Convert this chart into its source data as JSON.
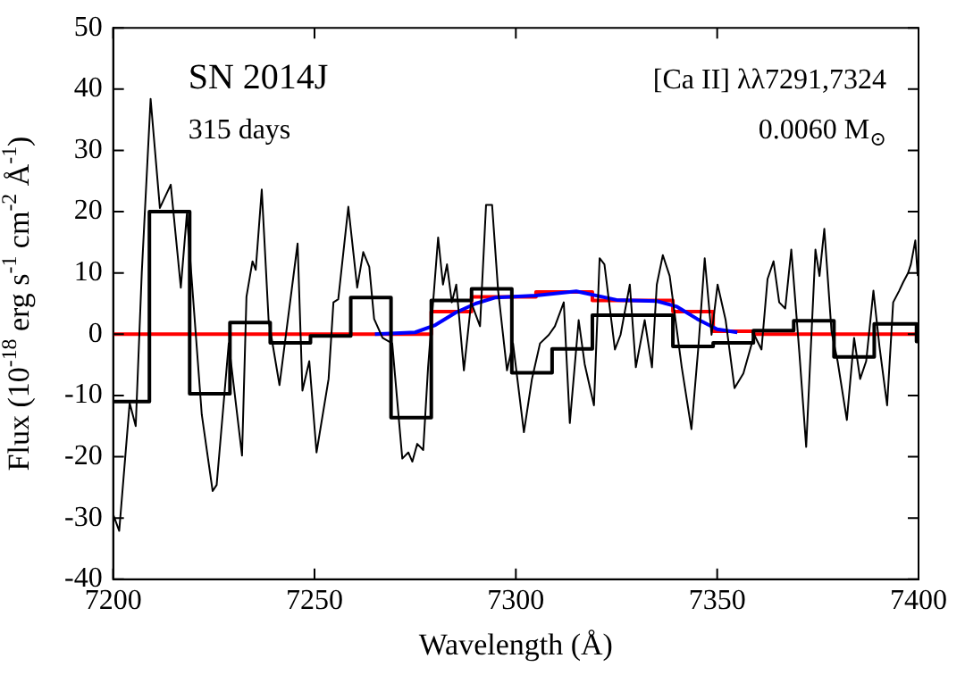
{
  "chart_data": {
    "type": "line",
    "xlabel": "Wavelength (Å)",
    "ylabel": "Flux (10$^{-18}$ erg s$^{-1}$ cm$^{-2}$ Å$^{-1}$)",
    "annotations": [
      "SN 2014J",
      "315 days",
      "[Ca II] λλ7291,7324",
      "0.0060 M$_{⊙}$"
    ],
    "xlim": [
      7200,
      7400
    ],
    "xticks": [
      7200,
      7250,
      7300,
      7350,
      7400
    ],
    "ylim": [
      -40,
      50
    ],
    "yticks": [
      -40,
      -30,
      -20,
      -10,
      0,
      10,
      20,
      30,
      40,
      50
    ],
    "grid": false,
    "legend": false,
    "marker": "none",
    "series": [
      {
        "type": "line",
        "color": "#000000",
        "x": [
          7200,
          7201.5,
          7204.1,
          7205.6,
          7207.1,
          7209.3,
          7211.6,
          7214.3,
          7216.8,
          7218.3,
          7222,
          7224.7,
          7225.7,
          7228.7,
          7232,
          7233.1,
          7234.6,
          7235.4,
          7236.9,
          7238.6,
          7241.3,
          7245.8,
          7247,
          7248.7,
          7250.5,
          7253.5,
          7254.7,
          7255.9,
          7258.4,
          7260.6,
          7262.1,
          7263.6,
          7264.8,
          7266.9,
          7269.3,
          7271.8,
          7273.3,
          7274.3,
          7275.5,
          7277,
          7278.2,
          7280.7,
          7281.9,
          7282.9,
          7284.1,
          7285.2,
          7287.1,
          7288.9,
          7291.1,
          7292.6,
          7294.1,
          7295.6,
          7297.8,
          7299.3,
          7302,
          7304,
          7306,
          7308.2,
          7309.7,
          7311.9,
          7313.4,
          7315.6,
          7317.1,
          7319.4,
          7320.8,
          7322,
          7324.6,
          7326,
          7328.3,
          7329.8,
          7332,
          7333.8,
          7335,
          7336.5,
          7338.2,
          7341.2,
          7343.6,
          7345.4,
          7346.9,
          7348.6,
          7350.1,
          7352.1,
          7354.3,
          7356.5,
          7359.2,
          7361,
          7362.5,
          7364,
          7365.4,
          7366.9,
          7368.4,
          7370.4,
          7372.1,
          7374.4,
          7375.4,
          7376.6,
          7378.4,
          7379.9,
          7382.2,
          7384,
          7385.5,
          7387,
          7388.8,
          7390.3,
          7392.2,
          7393.7,
          7395.2,
          7396.2,
          7397.4,
          7398.1,
          7399.2,
          7399.8
        ],
        "values": [
          -29.4,
          -32.1,
          -11.2,
          -15,
          10,
          38.4,
          20.6,
          24.4,
          7.6,
          19.6,
          -13.1,
          -25.6,
          -24.6,
          -1.5,
          -19.8,
          6.1,
          11.9,
          10.5,
          23.6,
          2.3,
          -8.3,
          14.8,
          -9.2,
          -4.4,
          -19.3,
          -7.3,
          5.2,
          5.7,
          20.8,
          7.6,
          13.4,
          11,
          2.5,
          -0.6,
          -1.5,
          -20.3,
          -19.3,
          -20.8,
          -17.9,
          -18.9,
          -5.4,
          15.8,
          8.1,
          11.4,
          5.2,
          8.1,
          -5.9,
          5.2,
          1.3,
          21.1,
          21.1,
          7.1,
          -5.9,
          -1.5,
          -16,
          -7.3,
          -1.5,
          -0.1,
          1.3,
          5.2,
          -14.5,
          2.3,
          -4.9,
          -11.6,
          12.4,
          11.4,
          -2.5,
          -0.1,
          8.1,
          -5.4,
          2.3,
          -5.4,
          8.1,
          12.9,
          9.5,
          -5.4,
          -15.5,
          -1.5,
          12.4,
          -0.1,
          8.1,
          2.3,
          -8.8,
          -6.4,
          -0.1,
          -2.5,
          9,
          11.9,
          5.2,
          4.2,
          13.8,
          -3,
          -18.4,
          13.8,
          9.5,
          17.2,
          0.4,
          -4.4,
          -14,
          -0.6,
          -7.3,
          -4.4,
          7.1,
          -2,
          -11.6,
          5.2,
          7.1,
          8.5,
          10,
          11.4,
          15.3,
          9.5
        ]
      },
      {
        "type": "step",
        "color": "#000000",
        "x": [
          7200,
          7209,
          7219,
          7229,
          7239,
          7249,
          7259,
          7269,
          7279,
          7289,
          7299,
          7309,
          7319,
          7339,
          7349,
          7359,
          7369,
          7379,
          7389,
          7399.5,
          7400
        ],
        "values": [
          -11,
          20,
          -9.7,
          1.9,
          -1.4,
          -0.3,
          6,
          -13.6,
          5.5,
          7.4,
          -6.3,
          -2.4,
          3.1,
          -2,
          -1.4,
          0.6,
          2.2,
          -3.7,
          1.7,
          -1.2,
          -1.2
        ]
      },
      {
        "type": "line",
        "color": "#0000ff",
        "x": [
          7265,
          7275,
          7280,
          7285,
          7290,
          7295,
          7305,
          7315,
          7325,
          7335,
          7340,
          7345,
          7350,
          7355
        ],
        "values": [
          0,
          0.3,
          1.5,
          3.5,
          5,
          6,
          6.3,
          7,
          5.6,
          5.4,
          4.5,
          2.5,
          0.8,
          0.3
        ]
      },
      {
        "type": "step",
        "color": "#ff0000",
        "x": [
          7200,
          7279,
          7289,
          7305,
          7319,
          7339,
          7349,
          7359,
          7400
        ],
        "values": [
          0,
          3.7,
          6.1,
          6.9,
          5.5,
          3.7,
          0.5,
          0,
          0
        ]
      }
    ]
  }
}
